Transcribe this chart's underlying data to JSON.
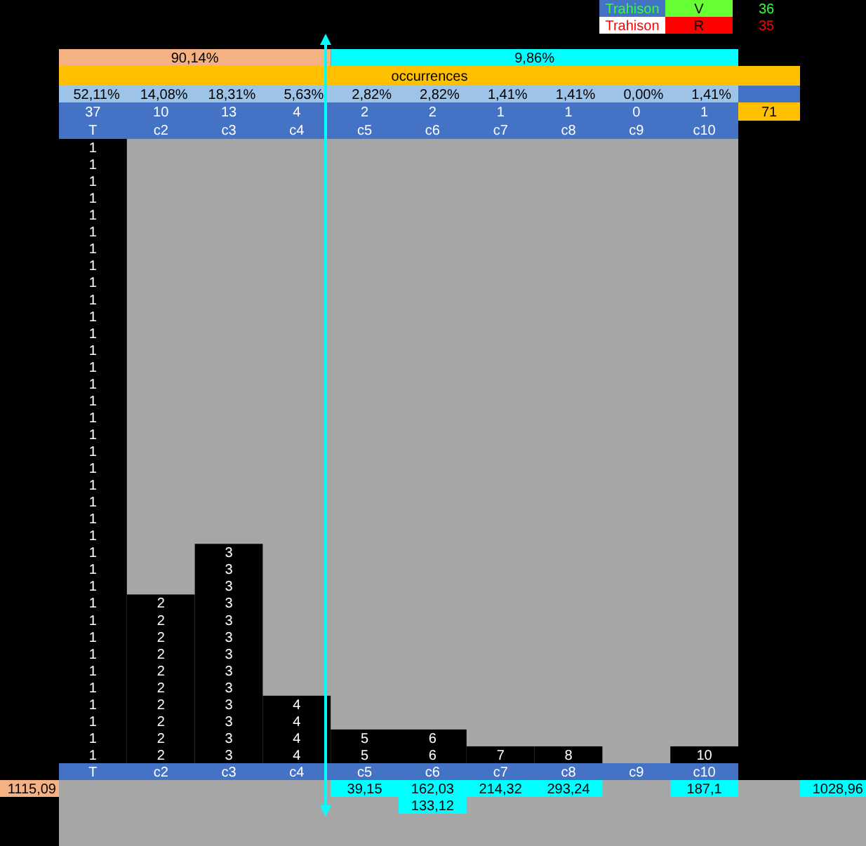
{
  "chart_data": {
    "type": "bar",
    "title": "occurrences",
    "categories": [
      "T",
      "c2",
      "c3",
      "c4",
      "c5",
      "c6",
      "c7",
      "c8",
      "c9",
      "c10"
    ],
    "values": [
      37,
      10,
      13,
      4,
      2,
      2,
      1,
      1,
      0,
      1
    ],
    "color": "#000000",
    "data_labels": true,
    "annotations": [
      "90,14%",
      "9,86%",
      "52,11%",
      "14,08%",
      "18,31%",
      "5,63%",
      "2,82%",
      "2,82%",
      "1,41%",
      "1,41%",
      "0,00%",
      "1,41%",
      "1115,09",
      "39,15",
      "162,03",
      "214,32",
      "293,24",
      "187,1",
      "133,12",
      "1028,96",
      "Trahison",
      "V",
      "36",
      "Trahison",
      "R",
      "35",
      "71",
      "1",
      "2",
      "3",
      "4",
      "5",
      "6",
      "7",
      "8",
      "10"
    ]
  }
}
